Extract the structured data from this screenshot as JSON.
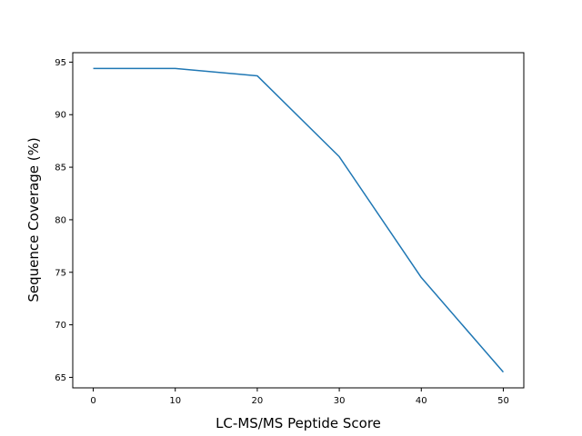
{
  "chart_data": {
    "type": "line",
    "title": "",
    "xlabel": "LC-MS/MS Peptide Score",
    "ylabel": "Sequence Coverage (%)",
    "xlim": [
      -2.5,
      52.5
    ],
    "ylim": [
      64,
      95.9
    ],
    "grid": false,
    "legend": "none",
    "x_ticks": [
      0,
      10,
      20,
      30,
      40,
      50
    ],
    "y_ticks": [
      65,
      70,
      75,
      80,
      85,
      90,
      95
    ],
    "series": [
      {
        "color": "#1f77b4",
        "x": [
          0,
          10,
          20,
          30,
          40,
          50
        ],
        "y": [
          94.4,
          94.4,
          93.7,
          86.0,
          74.5,
          65.5
        ]
      }
    ]
  }
}
